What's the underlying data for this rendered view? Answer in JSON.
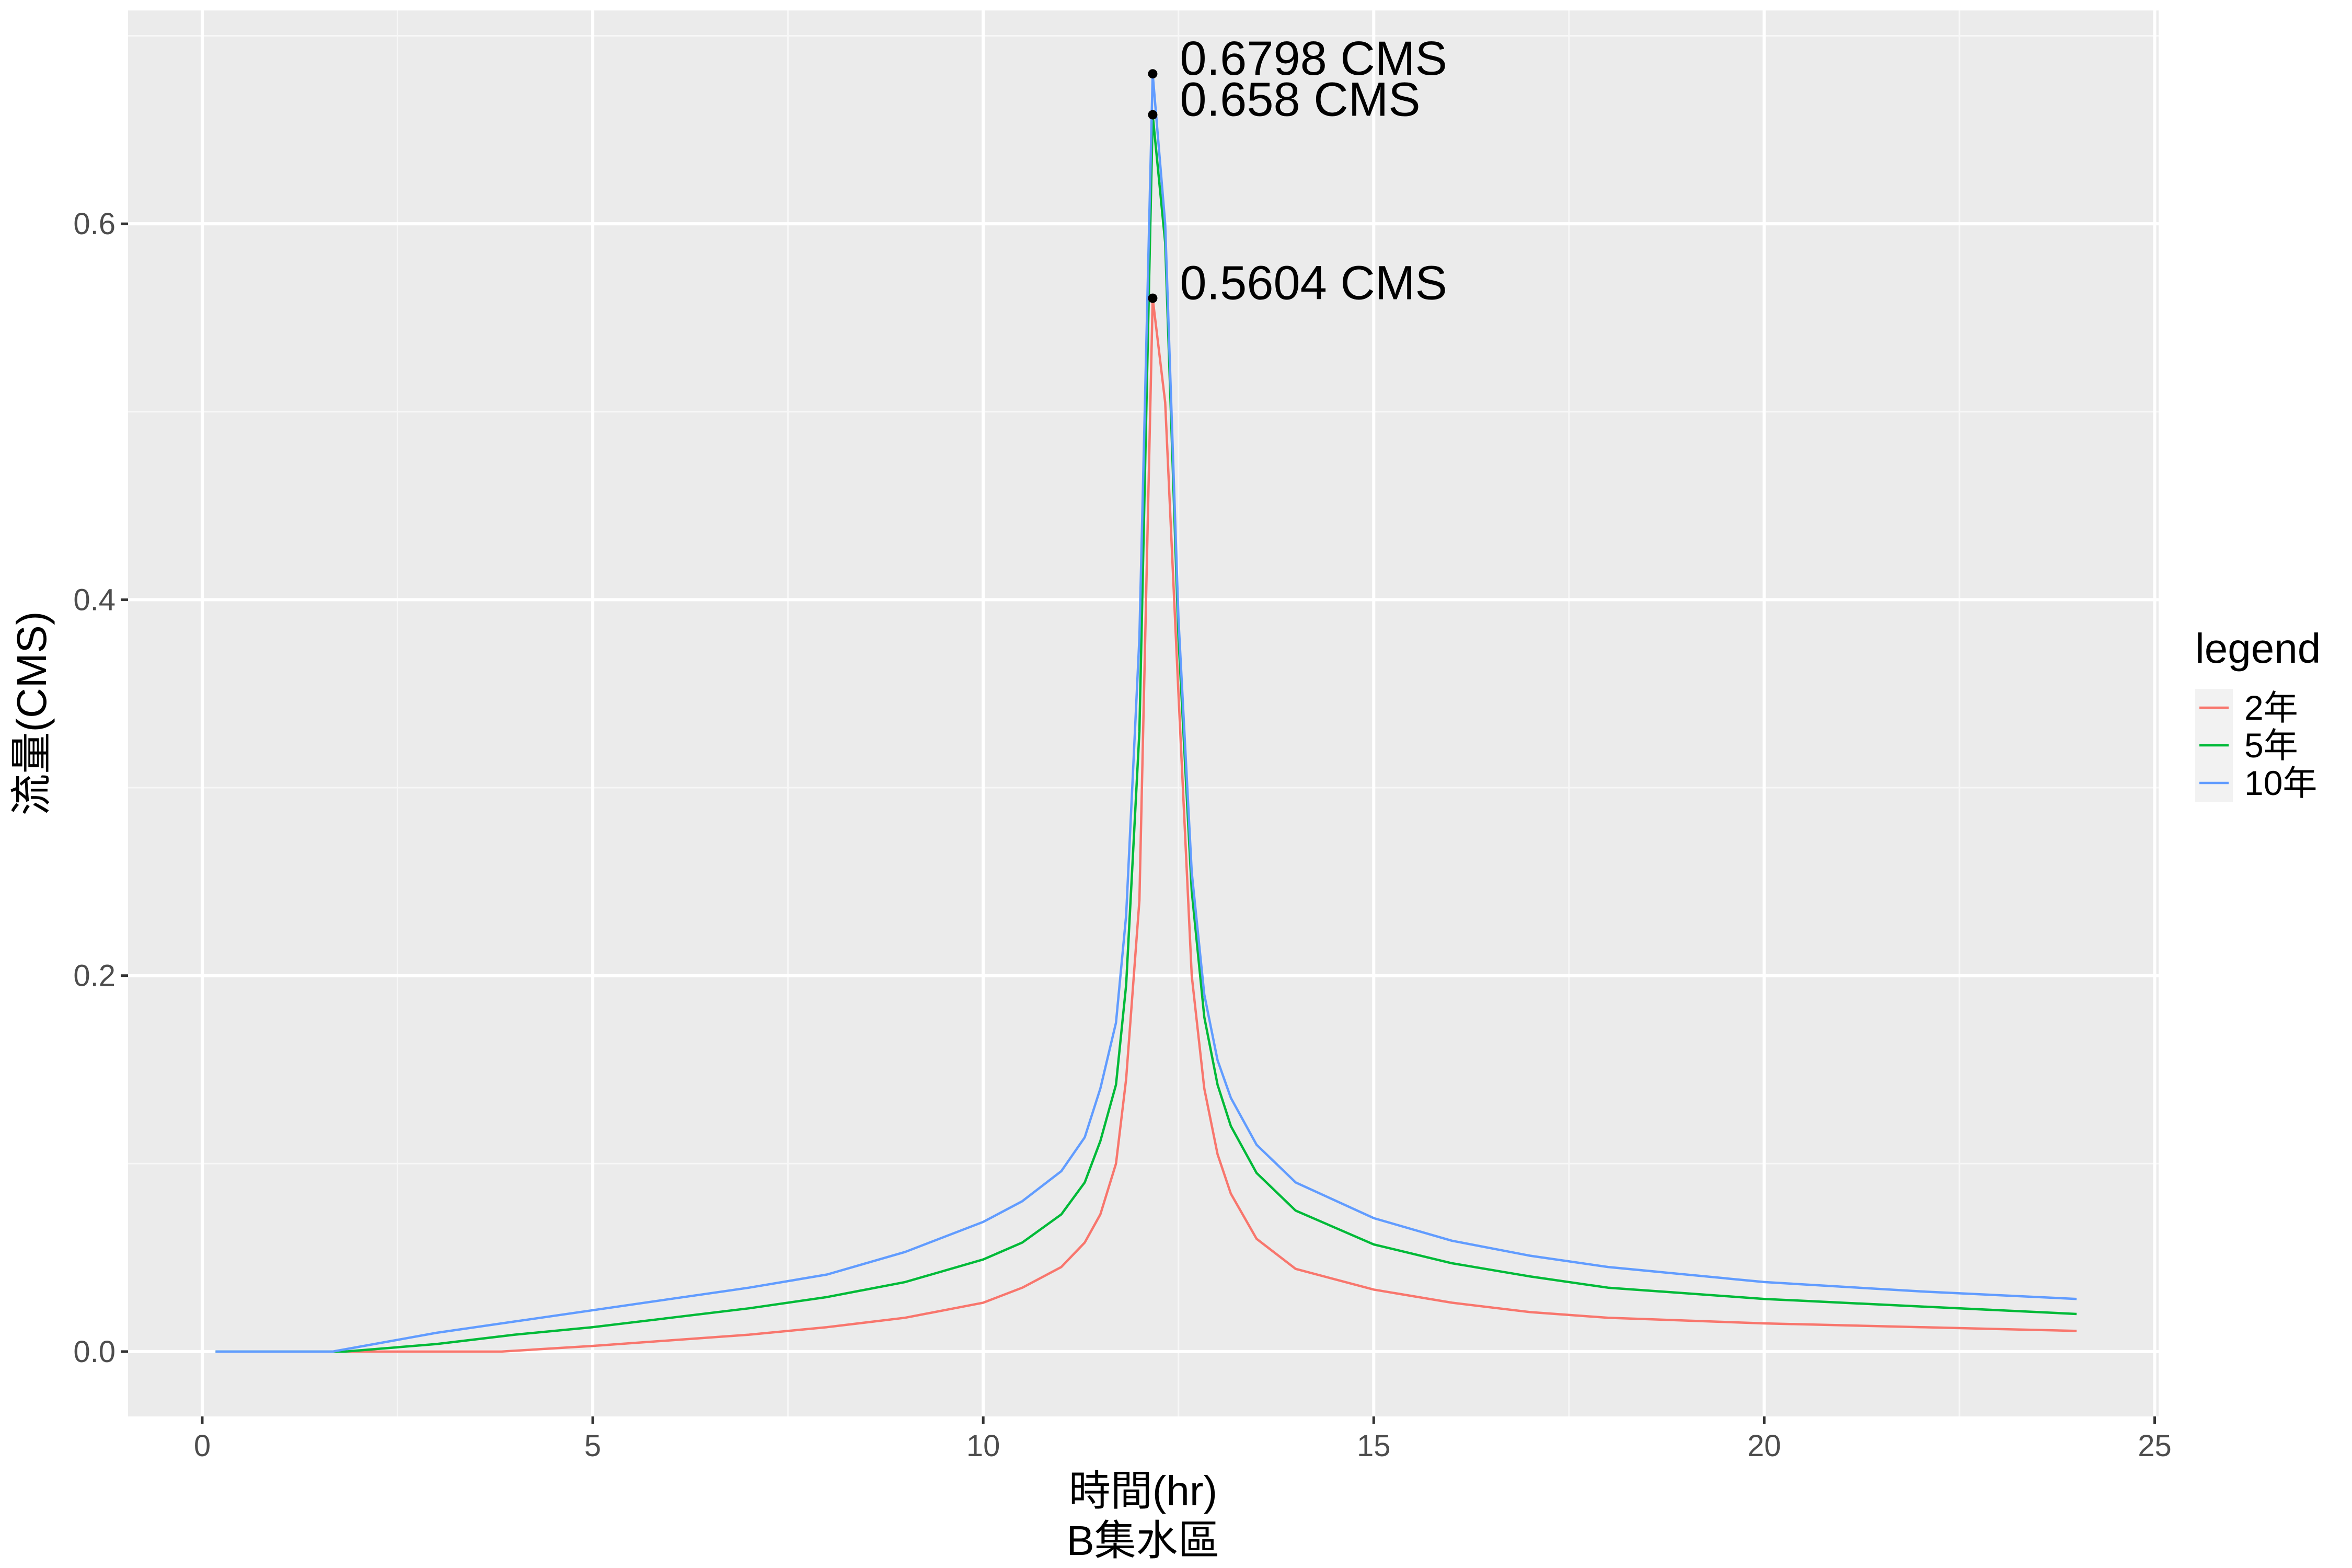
{
  "chart_data": {
    "type": "line",
    "title": "",
    "xlabel": "時間(hr)",
    "xlabel_line2": "B集水區",
    "ylabel": "流量(CMS)",
    "xlim": [
      -0.95,
      25.05
    ],
    "ylim": [
      -0.0345,
      0.7135
    ],
    "x_ticks": [
      0,
      5,
      10,
      15,
      20,
      25
    ],
    "x_tick_labels": [
      "0",
      "5",
      "10",
      "15",
      "20",
      "25"
    ],
    "y_ticks": [
      0.0,
      0.2,
      0.4,
      0.6
    ],
    "y_tick_labels": [
      "0.0",
      "0.2",
      "0.4",
      "0.6"
    ],
    "grid": true,
    "panel_background": "#ebebeb",
    "legend": {
      "title": "legend",
      "position": "right"
    },
    "series": [
      {
        "name": "2年",
        "color": "#f8766d",
        "x": [
          0.17,
          1.5,
          3.83,
          5,
          6,
          7,
          8,
          9,
          10,
          10.5,
          11,
          11.3,
          11.5,
          11.7,
          11.83,
          12,
          12.17,
          12.33,
          12.5,
          12.67,
          12.83,
          13,
          13.17,
          13.5,
          14,
          15,
          16,
          17,
          18,
          20,
          22,
          24
        ],
        "values": [
          0.0,
          0.0,
          0.0,
          0.003,
          0.006,
          0.009,
          0.013,
          0.018,
          0.026,
          0.034,
          0.045,
          0.058,
          0.073,
          0.1,
          0.145,
          0.24,
          0.5604,
          0.505,
          0.35,
          0.2,
          0.14,
          0.105,
          0.084,
          0.06,
          0.044,
          0.033,
          0.026,
          0.021,
          0.018,
          0.015,
          0.013,
          0.011
        ]
      },
      {
        "name": "5年",
        "color": "#00ba38",
        "x": [
          0.17,
          1.83,
          3,
          4,
          5,
          6,
          7,
          8,
          9,
          10,
          10.5,
          11,
          11.3,
          11.5,
          11.7,
          11.83,
          12,
          12.17,
          12.33,
          12.5,
          12.67,
          12.83,
          13,
          13.17,
          13.5,
          14,
          15,
          16,
          17,
          18,
          20,
          22,
          24
        ],
        "values": [
          0.0,
          0.0,
          0.004,
          0.009,
          0.013,
          0.018,
          0.023,
          0.029,
          0.037,
          0.049,
          0.058,
          0.073,
          0.09,
          0.112,
          0.142,
          0.195,
          0.33,
          0.658,
          0.59,
          0.38,
          0.245,
          0.178,
          0.142,
          0.12,
          0.095,
          0.075,
          0.057,
          0.047,
          0.04,
          0.034,
          0.028,
          0.024,
          0.02
        ]
      },
      {
        "name": "10年",
        "color": "#619cff",
        "x": [
          0.17,
          1.67,
          3,
          4,
          5,
          6,
          7,
          8,
          9,
          10,
          10.5,
          11,
          11.3,
          11.5,
          11.7,
          11.83,
          12,
          12.17,
          12.33,
          12.5,
          12.67,
          12.83,
          13,
          13.17,
          13.5,
          14,
          15,
          16,
          17,
          18,
          20,
          22,
          24
        ],
        "values": [
          0.0,
          0.0,
          0.01,
          0.016,
          0.022,
          0.028,
          0.034,
          0.041,
          0.053,
          0.069,
          0.08,
          0.096,
          0.114,
          0.14,
          0.175,
          0.232,
          0.38,
          0.6798,
          0.6,
          0.39,
          0.255,
          0.19,
          0.155,
          0.135,
          0.11,
          0.09,
          0.071,
          0.059,
          0.051,
          0.045,
          0.037,
          0.032,
          0.028
        ]
      }
    ],
    "annotations": [
      {
        "x": 12.17,
        "y": 0.6798,
        "label": "0.6798 CMS"
      },
      {
        "x": 12.17,
        "y": 0.658,
        "label": "0.658 CMS"
      },
      {
        "x": 12.17,
        "y": 0.5604,
        "label": "0.5604 CMS"
      }
    ]
  }
}
